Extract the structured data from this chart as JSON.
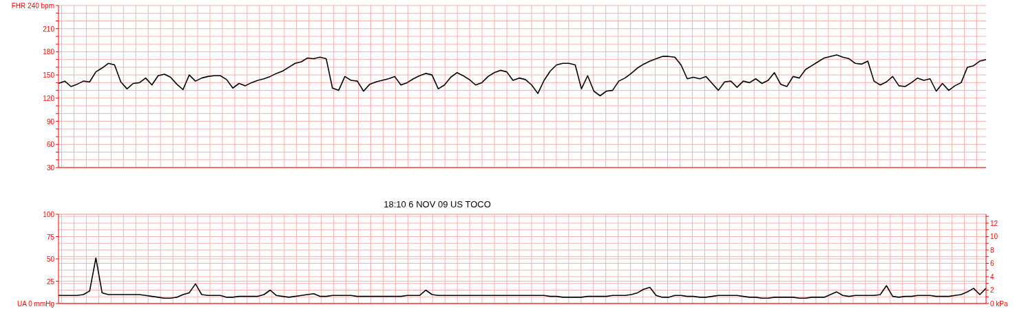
{
  "chart_data": [
    {
      "type": "line",
      "tick_labels": "y",
      "grid": true,
      "categories": [
        null,
        null,
        null,
        null,
        null,
        null,
        null,
        null,
        null,
        null,
        null,
        null,
        null,
        null,
        null,
        null,
        null,
        null,
        null,
        null,
        null,
        null,
        null,
        null,
        null,
        null,
        null,
        null,
        null,
        null,
        null,
        null,
        null,
        null,
        null,
        null,
        null,
        null,
        null,
        null,
        null,
        null,
        null,
        null,
        null,
        null,
        null,
        null,
        null,
        null,
        null,
        null,
        null,
        null,
        null,
        null,
        null,
        null,
        null,
        null,
        null,
        null,
        null,
        null,
        null,
        null,
        null,
        null,
        null,
        null,
        null,
        null,
        null,
        null,
        null,
        null,
        null,
        null,
        null,
        null,
        null,
        null,
        null,
        null,
        null,
        null,
        null,
        null,
        null,
        null,
        null,
        null,
        null,
        null,
        null,
        null,
        null,
        null,
        null,
        null,
        null,
        null,
        null,
        null,
        null,
        null,
        null,
        null,
        null,
        null,
        null,
        null,
        null,
        null,
        null,
        null,
        null,
        null,
        null,
        null,
        null,
        null,
        null,
        null,
        null,
        null,
        null,
        null,
        null,
        null,
        null,
        null,
        null,
        null,
        null,
        null,
        null,
        null,
        null,
        null,
        null,
        null,
        null,
        null,
        null,
        null,
        null,
        null,
        null,
        null
      ],
      "series": [
        {
          "color": "#000000",
          "values": [
            139,
            142,
            135,
            138,
            142,
            141,
            154,
            159,
            165,
            163,
            141,
            132,
            139,
            140,
            146,
            137,
            149,
            151,
            147,
            138,
            131,
            150,
            142,
            146,
            148,
            149,
            149,
            144,
            133,
            139,
            136,
            140,
            143,
            145,
            148,
            152,
            155,
            160,
            165,
            167,
            172,
            171,
            173,
            171,
            133,
            130,
            148,
            143,
            142,
            129,
            138,
            141,
            143,
            145,
            148,
            137,
            140,
            145,
            149,
            152,
            150,
            132,
            137,
            147,
            153,
            149,
            144,
            137,
            140,
            148,
            153,
            156,
            154,
            143,
            146,
            144,
            137,
            126,
            143,
            155,
            163,
            165,
            165,
            163,
            132,
            149,
            129,
            123,
            129,
            130,
            142,
            146,
            152,
            159,
            164,
            168,
            171,
            174,
            174,
            173,
            163,
            145,
            147,
            145,
            148,
            139,
            130,
            141,
            142,
            134,
            142,
            140,
            145,
            139,
            143,
            153,
            138,
            135,
            148,
            146,
            157,
            162,
            167,
            172,
            174,
            176,
            173,
            171,
            165,
            164,
            168,
            142,
            137,
            141,
            148,
            136,
            135,
            140,
            146,
            143,
            145,
            129,
            139,
            130,
            136,
            140,
            160,
            162,
            168,
            170
          ]
        }
      ],
      "ylim": [
        30,
        240
      ],
      "yticks": [
        30,
        60,
        90,
        120,
        150,
        180,
        210,
        {
          "value": 240,
          "label": "FHR 240 bpm"
        },
        {
          "value": 40,
          "label": null
        },
        {
          "value": 50,
          "label": null
        },
        {
          "value": 70,
          "label": null
        },
        {
          "value": 80,
          "label": null
        },
        {
          "value": 100,
          "label": null
        },
        {
          "value": 110,
          "label": null
        },
        {
          "value": 130,
          "label": null
        },
        {
          "value": 140,
          "label": null
        },
        {
          "value": 160,
          "label": null
        },
        {
          "value": 170,
          "label": null
        },
        {
          "value": 190,
          "label": null
        },
        {
          "value": 200,
          "label": null
        },
        {
          "value": 220,
          "label": null
        },
        {
          "value": 230,
          "label": null
        }
      ]
    },
    {
      "type": "line",
      "title": "18:10 6 NOV 09 US TOCO",
      "tick_labels": "y",
      "grid": true,
      "categories": [
        null,
        null,
        null,
        null,
        null,
        null,
        null,
        null,
        null,
        null,
        null,
        null,
        null,
        null,
        null,
        null,
        null,
        null,
        null,
        null,
        null,
        null,
        null,
        null,
        null,
        null,
        null,
        null,
        null,
        null,
        null,
        null,
        null,
        null,
        null,
        null,
        null,
        null,
        null,
        null,
        null,
        null,
        null,
        null,
        null,
        null,
        null,
        null,
        null,
        null,
        null,
        null,
        null,
        null,
        null,
        null,
        null,
        null,
        null,
        null,
        null,
        null,
        null,
        null,
        null,
        null,
        null,
        null,
        null,
        null,
        null,
        null,
        null,
        null,
        null,
        null,
        null,
        null,
        null,
        null,
        null,
        null,
        null,
        null,
        null,
        null,
        null,
        null,
        null,
        null,
        null,
        null,
        null,
        null,
        null,
        null,
        null,
        null,
        null,
        null,
        null,
        null,
        null,
        null,
        null,
        null,
        null,
        null,
        null,
        null,
        null,
        null,
        null,
        null,
        null,
        null,
        null,
        null,
        null,
        null,
        null,
        null,
        null,
        null,
        null,
        null,
        null,
        null,
        null,
        null,
        null,
        null,
        null,
        null,
        null,
        null,
        null,
        null,
        null,
        null,
        null,
        null,
        null,
        null,
        null,
        null,
        null,
        null,
        null,
        null
      ],
      "series": [
        {
          "color": "#000000",
          "values": [
            9,
            9,
            9,
            9,
            10,
            14,
            51,
            12,
            10,
            10,
            10,
            10,
            10,
            10,
            9,
            8,
            7,
            6,
            6,
            7,
            10,
            12,
            22,
            10,
            9,
            9,
            9,
            7,
            7,
            8,
            8,
            8,
            8,
            10,
            15,
            9,
            8,
            7,
            8,
            9,
            10,
            11,
            8,
            8,
            9,
            9,
            9,
            9,
            8,
            8,
            8,
            8,
            8,
            8,
            8,
            8,
            9,
            9,
            9,
            15,
            10,
            9,
            9,
            9,
            9,
            9,
            9,
            9,
            9,
            9,
            9,
            9,
            9,
            9,
            9,
            9,
            9,
            9,
            9,
            8,
            8,
            7,
            7,
            7,
            7,
            8,
            8,
            8,
            8,
            9,
            9,
            9,
            10,
            12,
            16,
            18,
            9,
            7,
            7,
            9,
            9,
            8,
            8,
            7,
            7,
            8,
            9,
            9,
            9,
            9,
            8,
            7,
            7,
            6,
            6,
            7,
            7,
            7,
            7,
            6,
            6,
            7,
            7,
            7,
            10,
            13,
            9,
            8,
            9,
            9,
            9,
            9,
            10,
            20,
            8,
            7,
            8,
            8,
            9,
            9,
            9,
            8,
            8,
            8,
            9,
            10,
            13,
            17,
            10,
            17
          ]
        }
      ],
      "ylim": [
        0,
        100
      ],
      "yticks": [
        {
          "value": 0,
          "label": "UA 0 mmHg"
        },
        25,
        50,
        75,
        100
      ],
      "y2lim": [
        0,
        13.33
      ],
      "y2ticks": [
        {
          "value": 0,
          "label": "0 kPa"
        },
        2,
        4,
        6,
        8,
        10,
        12,
        {
          "value": 1,
          "label": null
        },
        {
          "value": 3,
          "label": null
        },
        {
          "value": 5,
          "label": null
        },
        {
          "value": 7,
          "label": null
        },
        {
          "value": 9,
          "label": null
        },
        {
          "value": 11,
          "label": null
        },
        {
          "value": 13,
          "label": null
        }
      ]
    }
  ]
}
